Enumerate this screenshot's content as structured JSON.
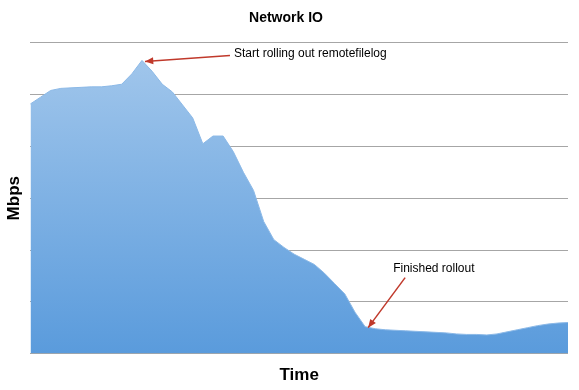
{
  "chart_data": {
    "type": "area",
    "title": "Network IO",
    "x_label": "Time",
    "y_label": "Mbps",
    "categories": [
      null,
      null,
      null,
      null,
      null,
      null,
      null,
      null,
      null,
      null,
      null,
      null,
      null,
      null,
      null,
      null,
      null,
      null,
      null,
      null,
      null,
      null,
      null,
      null,
      null,
      null,
      null,
      null,
      null,
      null,
      null,
      null,
      null,
      null,
      null,
      null,
      null,
      null,
      null,
      null,
      null,
      null,
      null,
      null,
      null,
      null,
      null,
      null,
      null,
      null,
      null,
      null,
      null,
      null
    ],
    "values": [
      4.82,
      4.95,
      5.08,
      5.12,
      5.13,
      5.14,
      5.15,
      5.15,
      5.17,
      5.2,
      5.4,
      5.66,
      5.45,
      5.2,
      5.05,
      4.8,
      4.55,
      4.05,
      4.2,
      4.2,
      3.9,
      3.5,
      3.15,
      2.55,
      2.2,
      2.05,
      1.92,
      1.82,
      1.72,
      1.55,
      1.35,
      1.15,
      0.8,
      0.52,
      0.48,
      0.46,
      0.45,
      0.44,
      0.43,
      0.42,
      0.41,
      0.4,
      0.38,
      0.37,
      0.37,
      0.36,
      0.38,
      0.42,
      0.46,
      0.5,
      0.54,
      0.57,
      0.59,
      0.6
    ],
    "color": "#5a9bdc",
    "ylim": [
      0,
      6
    ],
    "yticks": [
      0,
      1,
      2,
      3,
      4,
      5,
      6
    ],
    "grid": true,
    "tick_labels": false,
    "annotations": [
      "Start rolling out remotefilelog",
      "Finished rollout"
    ]
  }
}
